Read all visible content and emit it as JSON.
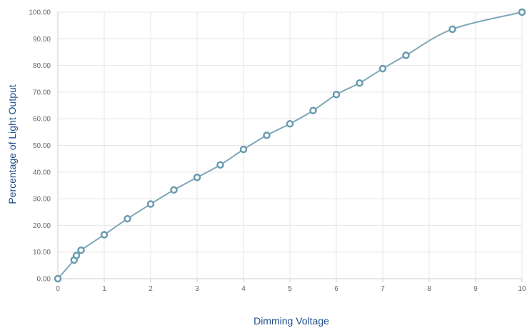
{
  "chart_data": {
    "type": "line",
    "xlabel": "Dimming Voltage",
    "ylabel": "Percentage of Light Output",
    "xlim": [
      0,
      10
    ],
    "ylim": [
      0,
      100
    ],
    "x_ticks": [
      "0",
      "1",
      "2",
      "3",
      "4",
      "5",
      "6",
      "7",
      "8",
      "9",
      "10"
    ],
    "y_ticks": [
      "0.00",
      "10.00",
      "20.00",
      "30.00",
      "40.00",
      "50.00",
      "60.00",
      "70.00",
      "80.00",
      "90.00",
      "100.00"
    ],
    "grid": true,
    "series": [
      {
        "color": "#7fa8b8",
        "marker_color": "#6a9bb0",
        "points": [
          {
            "x": 0,
            "y": 0
          },
          {
            "x": 0.35,
            "y": 7
          },
          {
            "x": 0.4,
            "y": 8.7
          },
          {
            "x": 0.5,
            "y": 10.7
          },
          {
            "x": 1,
            "y": 16.5
          },
          {
            "x": 1.5,
            "y": 22.5
          },
          {
            "x": 2,
            "y": 28
          },
          {
            "x": 2.5,
            "y": 33.3
          },
          {
            "x": 3,
            "y": 38
          },
          {
            "x": 3.5,
            "y": 42.7
          },
          {
            "x": 4,
            "y": 48.5
          },
          {
            "x": 4.5,
            "y": 53.8
          },
          {
            "x": 5,
            "y": 58.1
          },
          {
            "x": 5.5,
            "y": 63.1
          },
          {
            "x": 6,
            "y": 69.1
          },
          {
            "x": 6.5,
            "y": 73.4
          },
          {
            "x": 7,
            "y": 78.8
          },
          {
            "x": 7.5,
            "y": 83.8
          },
          {
            "x": 8.5,
            "y": 93.6
          },
          {
            "x": 10,
            "y": 100
          }
        ]
      }
    ]
  }
}
